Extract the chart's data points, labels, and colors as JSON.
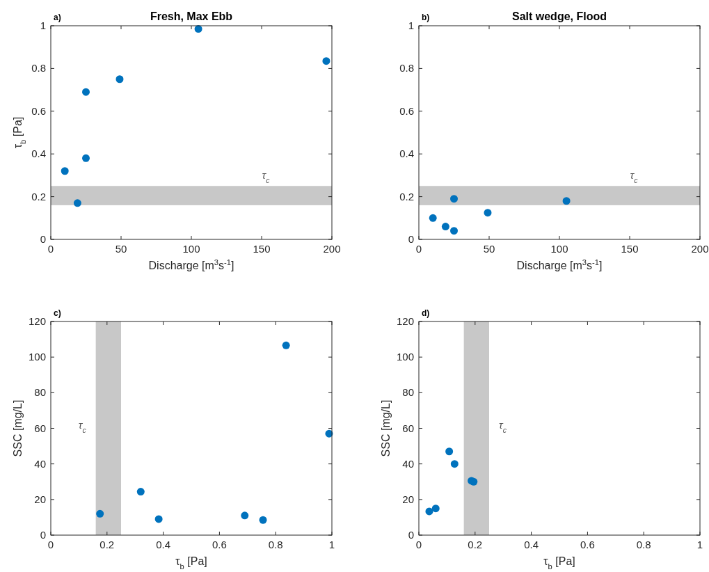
{
  "chart_data": [
    {
      "type": "scatter",
      "title": "Fresh, Max Ebb",
      "xlabel": "Discharge [m$^{3}$s$^{-1}$]",
      "ylabel": "τ$_{b}$ [Pa]",
      "xlim": [
        0,
        200
      ],
      "ylim": [
        0,
        1
      ],
      "xticks": [
        0,
        50,
        100,
        150,
        200
      ],
      "yticks": [
        0,
        0.2,
        0.4,
        0.6,
        0.8,
        1
      ],
      "marker": "circle",
      "series": [
        {
          "color": "#0072bd",
          "x": [
            10,
            19,
            25,
            25,
            49,
            105,
            196
          ],
          "values": [
            0.32,
            0.17,
            0.69,
            0.38,
            0.75,
            0.985,
            0.835
          ]
        }
      ],
      "bands": [
        {
          "axis": "y",
          "from": 0.16,
          "to": 0.25,
          "color": "#c8c8c8",
          "label": "τ$_{c}$"
        }
      ],
      "annotations": [
        "a)"
      ]
    },
    {
      "type": "scatter",
      "title": "Salt wedge, Flood",
      "xlabel": "Discharge [m$^{3}$s$^{-1}$]",
      "xlim": [
        0,
        200
      ],
      "ylim": [
        0,
        1
      ],
      "xticks": [
        0,
        50,
        100,
        150,
        200
      ],
      "yticks": [
        0,
        0.2,
        0.4,
        0.6,
        0.8,
        1
      ],
      "marker": "circle",
      "series": [
        {
          "color": "#0072bd",
          "x": [
            10,
            19,
            25,
            25,
            49,
            105
          ],
          "values": [
            0.1,
            0.06,
            0.19,
            0.04,
            0.125,
            0.18
          ]
        }
      ],
      "bands": [
        {
          "axis": "y",
          "from": 0.16,
          "to": 0.25,
          "color": "#c8c8c8",
          "label": "τ$_{c}$"
        }
      ],
      "annotations": [
        "b)"
      ]
    },
    {
      "type": "scatter",
      "xlabel": "τ$_{b}$ [Pa]",
      "ylabel": "SSC [mg/L]",
      "xlim": [
        0,
        1
      ],
      "ylim": [
        0,
        120
      ],
      "xticks": [
        0,
        0.2,
        0.4,
        0.6,
        0.8,
        1
      ],
      "yticks": [
        0,
        20,
        40,
        60,
        80,
        100,
        120
      ],
      "marker": "circle",
      "series": [
        {
          "color": "#0072bd",
          "x": [
            0.175,
            0.32,
            0.384,
            0.69,
            0.755,
            0.837,
            0.99
          ],
          "values": [
            12,
            24.4,
            9,
            11,
            8.5,
            106.6,
            57
          ]
        }
      ],
      "bands": [
        {
          "axis": "x",
          "from": 0.16,
          "to": 0.25,
          "color": "#c8c8c8",
          "label": "τ$_{c}$"
        }
      ],
      "annotations": [
        "c)"
      ]
    },
    {
      "type": "scatter",
      "xlabel": "τ$_{b}$ [Pa]",
      "ylabel": "SSC [mg/L]",
      "xlim": [
        0,
        1
      ],
      "ylim": [
        0,
        120
      ],
      "xticks": [
        0,
        0.2,
        0.4,
        0.6,
        0.8,
        1
      ],
      "yticks": [
        0,
        20,
        40,
        60,
        80,
        100,
        120
      ],
      "marker": "circle",
      "series": [
        {
          "color": "#0072bd",
          "x": [
            0.037,
            0.06,
            0.108,
            0.127,
            0.187,
            0.195
          ],
          "values": [
            13.3,
            15,
            47,
            40,
            30.5,
            30
          ]
        }
      ],
      "bands": [
        {
          "axis": "x",
          "from": 0.16,
          "to": 0.25,
          "color": "#c8c8c8",
          "label": "τ$_{c}$"
        }
      ],
      "annotations": [
        "d)"
      ]
    }
  ]
}
